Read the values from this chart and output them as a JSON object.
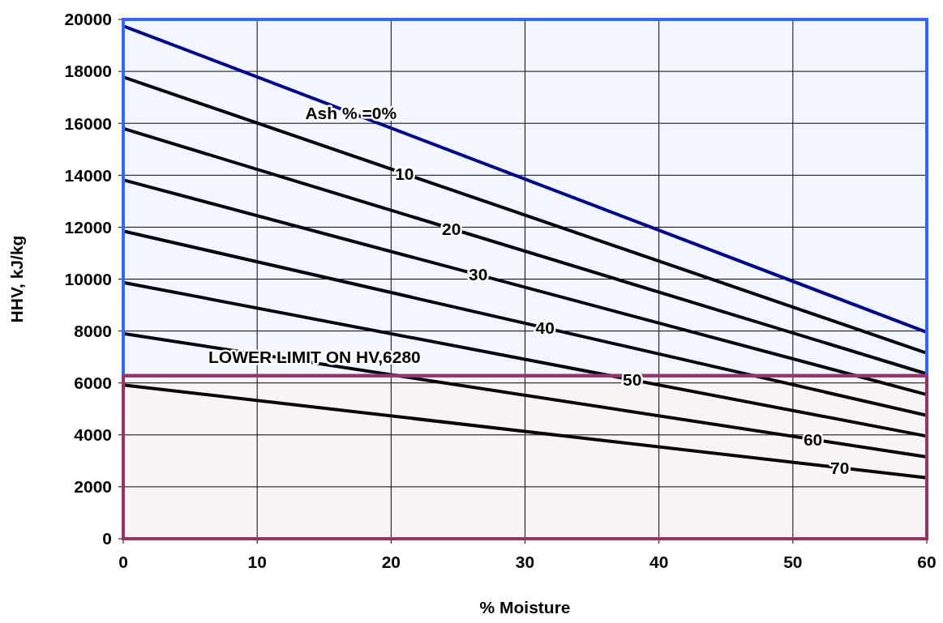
{
  "chart_data": {
    "type": "line",
    "xlabel": "% Moisture",
    "ylabel": "HHV, kJ/kg",
    "xlim": [
      0,
      60
    ],
    "ylim": [
      0,
      20000
    ],
    "xticks": [
      0,
      10,
      20,
      30,
      40,
      50,
      60
    ],
    "yticks": [
      0,
      2000,
      4000,
      6000,
      8000,
      10000,
      12000,
      14000,
      16000,
      18000,
      20000
    ],
    "grid": true,
    "marker": "none",
    "line_style": "solid",
    "x": [
      0,
      60
    ],
    "series": [
      {
        "color": "#000080",
        "values": [
          19750,
          7950
        ]
      },
      {
        "color": "#000000",
        "values": [
          17780,
          7150
        ]
      },
      {
        "color": "#000000",
        "values": [
          15800,
          6350
        ]
      },
      {
        "color": "#000000",
        "values": [
          13820,
          5550
        ]
      },
      {
        "color": "#000000",
        "values": [
          11850,
          4750
        ]
      },
      {
        "color": "#000000",
        "values": [
          9870,
          3950
        ]
      },
      {
        "color": "#000000",
        "values": [
          7900,
          3150
        ]
      },
      {
        "color": "#000000",
        "values": [
          5920,
          2350
        ]
      }
    ],
    "bands": [
      {
        "axis": "y",
        "from": 6280,
        "to": 20000,
        "color": "#3366ff"
      },
      {
        "axis": "y",
        "from": 0,
        "to": 6280,
        "color": "#993366",
        "label": "LOWER LIMIT ON HV,6280"
      }
    ],
    "annotations": [
      {
        "text": "Ash % =0%",
        "x": 17,
        "y": 16406
      },
      {
        "text": "10",
        "x": 21,
        "y": 14059
      },
      {
        "text": "20",
        "x": 24.5,
        "y": 11941
      },
      {
        "text": "30",
        "x": 26.5,
        "y": 10168
      },
      {
        "text": "40",
        "x": 31.5,
        "y": 8124
      },
      {
        "text": "50",
        "x": 38,
        "y": 6119
      },
      {
        "text": "60",
        "x": 51.5,
        "y": 3821
      },
      {
        "text": "70",
        "x": 53.5,
        "y": 2737
      }
    ]
  }
}
